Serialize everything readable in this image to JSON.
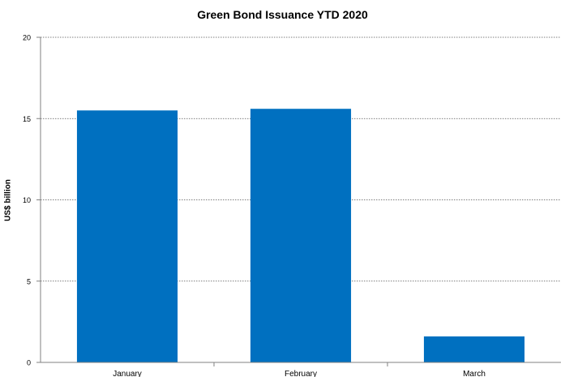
{
  "chart_data": {
    "type": "bar",
    "title": "Green Bond Issuance YTD 2020",
    "xlabel": "",
    "ylabel": "US$ billion",
    "categories": [
      "January",
      "February",
      "March"
    ],
    "values": [
      15.5,
      15.6,
      1.6
    ],
    "ylim": [
      0,
      20
    ],
    "yticks": [
      0,
      5,
      10,
      15,
      20
    ],
    "ytick_labels": [
      "0",
      "5",
      "10",
      "15",
      "20"
    ],
    "grid": true,
    "grid_style": "dotted",
    "bar_color": "#0070c0",
    "legend": "none"
  }
}
